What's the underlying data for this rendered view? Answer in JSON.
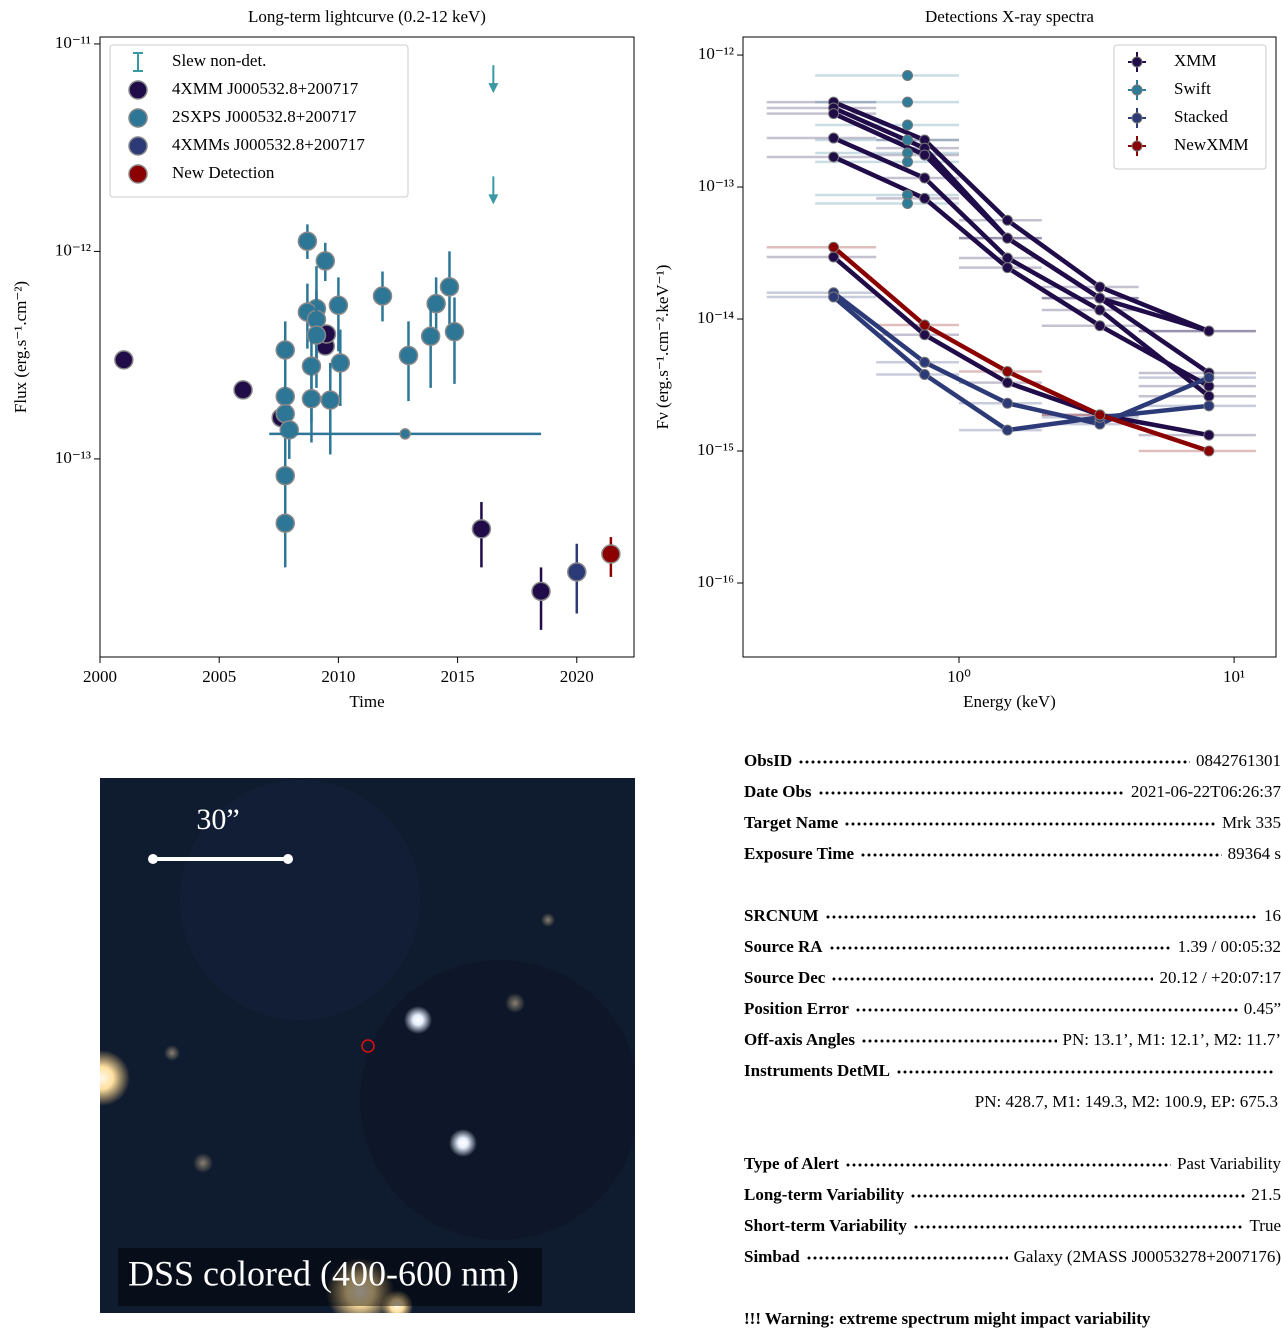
{
  "chart_data": [
    {
      "type": "scatter",
      "title": "Long-term lightcurve (0.2-12 keV)",
      "xlabel": "Time",
      "ylabel": "Flux (erg.s⁻¹.cm⁻²)",
      "xlim": [
        2000,
        2022.4
      ],
      "ylim": [
        1.11e-14,
        1.08e-11
      ],
      "xscale": "linear",
      "yscale": "log",
      "legend": "upper left",
      "xticks": [
        2000,
        2005,
        2010,
        2015,
        2020
      ],
      "yticks": [
        {
          "value": 1e-13,
          "label": "10⁻¹³"
        },
        {
          "value": 1e-12,
          "label": "10⁻¹²"
        },
        {
          "value": 1e-11,
          "label": "10⁻¹¹"
        }
      ],
      "series": [
        {
          "name": "Slew non-det.",
          "color": "#3a99a5",
          "marker": "upper-limit",
          "x": [
            2016.5,
            2016.5
          ],
          "values": [
            7.9e-12,
            2.3e-12
          ]
        },
        {
          "name": "4XMM J000532.8+200717",
          "color": "#1f0c48",
          "marker": "circle",
          "x": [
            2001.0,
            2006.0,
            2007.6,
            2009.45,
            2009.5,
            2016.0,
            2018.5
          ],
          "values": [
            3e-13,
            2.15e-13,
            1.58e-13,
            3.5e-13,
            4e-13,
            4.6e-14,
            2.3e-14
          ],
          "lower": [
            null,
            null,
            null,
            null,
            null,
            3e-14,
            1.5e-14
          ],
          "upper": [
            null,
            null,
            null,
            null,
            null,
            6.2e-14,
            3e-14
          ]
        },
        {
          "name": "2SXPS J000532.8+200717",
          "color": "#2d7696",
          "marker": "circle",
          "x": [
            2008.7,
            2009.45,
            2011.85,
            2014.66,
            2014.1,
            2010.0,
            2009.08,
            2008.7,
            2009.08,
            2009.08,
            2014.87,
            2013.87,
            2012.94,
            2007.77,
            2010.08,
            2008.87,
            2007.77,
            2008.87,
            2009.66,
            2007.77,
            2007.94,
            2007.77,
            2007.77,
            2012.8
          ],
          "values": [
            1.12e-12,
            9e-13,
            6.1e-13,
            6.75e-13,
            5.6e-13,
            5.5e-13,
            5.3e-13,
            5.1e-13,
            4.7e-13,
            3.95e-13,
            4.1e-13,
            3.9e-13,
            3.15e-13,
            3.35e-13,
            2.9e-13,
            2.8e-13,
            2e-13,
            1.95e-13,
            1.92e-13,
            1.65e-13,
            1.38e-13,
            8.3e-14,
            4.9e-14,
            1.32e-13
          ],
          "lower": [
            9.2e-13,
            7.2e-13,
            4.6e-13,
            4.4e-13,
            3.7e-13,
            3.3e-13,
            2.6e-13,
            3.4e-13,
            2.8e-13,
            2.2e-13,
            2.3e-13,
            2.2e-13,
            1.9e-13,
            1.9e-13,
            1.8e-13,
            1.5e-13,
            1.3e-13,
            1.2e-13,
            1.05e-13,
            1.1e-13,
            1e-13,
            5.5e-14,
            3e-14,
            null
          ],
          "upper": [
            1.35e-12,
            1.1e-12,
            8e-13,
            1e-12,
            7.5e-13,
            7.5e-13,
            8.5e-13,
            7e-13,
            6.5e-13,
            6e-13,
            6e-13,
            5.6e-13,
            4.6e-13,
            4.6e-13,
            4.2e-13,
            3.9e-13,
            2.8e-13,
            3e-13,
            2.9e-13,
            2.3e-13,
            1.8e-13,
            1.2e-13,
            7.3e-14,
            null
          ],
          "x_lower": [
            null,
            null,
            null,
            null,
            null,
            null,
            null,
            null,
            null,
            null,
            null,
            null,
            null,
            null,
            null,
            null,
            null,
            null,
            null,
            null,
            null,
            null,
            null,
            2007.1
          ],
          "x_upper": [
            null,
            null,
            null,
            null,
            null,
            null,
            null,
            null,
            null,
            null,
            null,
            null,
            null,
            null,
            null,
            null,
            null,
            null,
            null,
            null,
            null,
            null,
            null,
            2018.5
          ]
        },
        {
          "name": "4XMMs J000532.8+200717",
          "color": "#2d3a78",
          "marker": "circle",
          "x": [
            2020.0
          ],
          "values": [
            2.85e-14
          ],
          "lower": [
            1.8e-14
          ],
          "upper": [
            3.9e-14
          ]
        },
        {
          "name": "New Detection",
          "color": "#8b0000",
          "marker": "circle",
          "x": [
            2021.43
          ],
          "values": [
            3.48e-14
          ],
          "lower": [
            2.7e-14
          ],
          "upper": [
            4.2e-14
          ]
        }
      ]
    },
    {
      "type": "line",
      "title": "Detections X-ray spectra",
      "xlabel": "Energy (keV)",
      "ylabel": "Fν (erg.s⁻¹.cm⁻².keV⁻¹)",
      "xlim": [
        0.164,
        14.2
      ],
      "ylim": [
        2.75e-17,
        1.37e-12
      ],
      "xscale": "log",
      "yscale": "log",
      "legend": "upper right",
      "xticks": [
        {
          "value": 1,
          "label": "10⁰"
        },
        {
          "value": 10,
          "label": "10¹"
        }
      ],
      "yticks": [
        {
          "value": 1e-16,
          "label": "10⁻¹⁶"
        },
        {
          "value": 1e-15,
          "label": "10⁻¹⁵"
        },
        {
          "value": 1e-14,
          "label": "10⁻¹⁴"
        },
        {
          "value": 1e-13,
          "label": "10⁻¹³"
        },
        {
          "value": 1e-12,
          "label": "10⁻¹²"
        }
      ],
      "series": [
        {
          "name": "XMM",
          "color": "#1f0c48",
          "x": [
            0.35,
            0.75,
            1.5,
            3.25,
            8.1
          ],
          "bins": [
            0.2,
            0.5,
            1.0,
            2.0,
            4.5,
            12.0
          ],
          "spectra": [
            [
              4.4e-13,
              2.27e-13,
              5.6e-14,
              1.75e-14,
              8.1e-15
            ],
            [
              3.97e-13,
              1.97e-13,
              4.1e-14,
              1.44e-14,
              8.1e-15
            ],
            [
              3.6e-13,
              1.75e-13,
              4.1e-14,
              1.44e-14,
              3.9e-15
            ],
            [
              2.35e-13,
              1.17e-13,
              2.9e-14,
              1.17e-14,
              2.6e-15
            ],
            [
              1.69e-13,
              8.2e-14,
              2.45e-14,
              8.9e-15,
              3.1e-15
            ],
            [
              2.95e-14,
              7.6e-15,
              3.3e-15,
              1.88e-15,
              1.32e-15
            ]
          ]
        },
        {
          "name": "Swift",
          "color": "#2f7c98",
          "x": [
            0.65
          ],
          "bins": [
            0.3,
            1.0
          ],
          "spectra": [
            [
              7e-13
            ],
            [
              4.4e-13
            ],
            [
              2.95e-13
            ],
            [
              2.27e-13
            ],
            [
              1.81e-13
            ],
            [
              1.55e-13
            ],
            [
              8.7e-14
            ],
            [
              7.5e-14
            ]
          ]
        },
        {
          "name": "Stacked",
          "color": "#2d3a78",
          "x": [
            0.35,
            0.75,
            1.5,
            3.25,
            8.1
          ],
          "bins": [
            0.2,
            0.5,
            1.0,
            2.0,
            4.5,
            12.0
          ],
          "spectra": [
            [
              1.58e-14,
              4.7e-15,
              2.3e-15,
              1.6e-15,
              3.6e-15
            ],
            [
              1.47e-14,
              3.8e-15,
              1.44e-15,
              1.8e-15,
              2.2e-15
            ]
          ]
        },
        {
          "name": "NewXMM",
          "color": "#8b0000",
          "x": [
            0.35,
            0.75,
            1.5,
            3.25,
            8.1
          ],
          "bins": [
            0.2,
            0.5,
            1.0,
            2.0,
            4.5,
            12.0
          ],
          "spectra": [
            [
              3.5e-14,
              9e-15,
              4e-15,
              1.88e-15,
              1e-15
            ]
          ]
        }
      ]
    }
  ],
  "image": {
    "scale_label": "30”",
    "caption": "DSS colored (400-600 nm)"
  },
  "info": {
    "groups": [
      [
        {
          "key": "ObsID",
          "value": "0842761301"
        },
        {
          "key": "Date Obs",
          "value": "2021-06-22T06:26:37"
        },
        {
          "key": "Target Name",
          "value": "Mrk 335"
        },
        {
          "key": "Exposure Time",
          "value": "89364 s"
        }
      ],
      [
        {
          "key": "SRCNUM",
          "value": "16"
        },
        {
          "key": "Source RA",
          "value": "1.39 / 00:05:32"
        },
        {
          "key": "Source Dec",
          "value": "20.12 / +20:07:17"
        },
        {
          "key": "Position Error",
          "value": "0.45”"
        },
        {
          "key": "Off-axis Angles",
          "value": "PN: 13.1’, M1: 12.1’, M2: 11.7’"
        },
        {
          "key": "Instruments DetML",
          "value": "PN: 428.7, M1: 149.3, M2: 100.9, EP: 675.3",
          "wrap": true
        }
      ],
      [
        {
          "key": "Type of Alert",
          "value": "Past Variability"
        },
        {
          "key": "Long-term Variability",
          "value": "21.5"
        },
        {
          "key": "Short-term Variability",
          "value": "True"
        },
        {
          "key": "Simbad",
          "value": "Galaxy (2MASS J00053278+2007176)"
        }
      ]
    ],
    "warning": "!!! Warning: extreme spectrum might impact variability"
  }
}
